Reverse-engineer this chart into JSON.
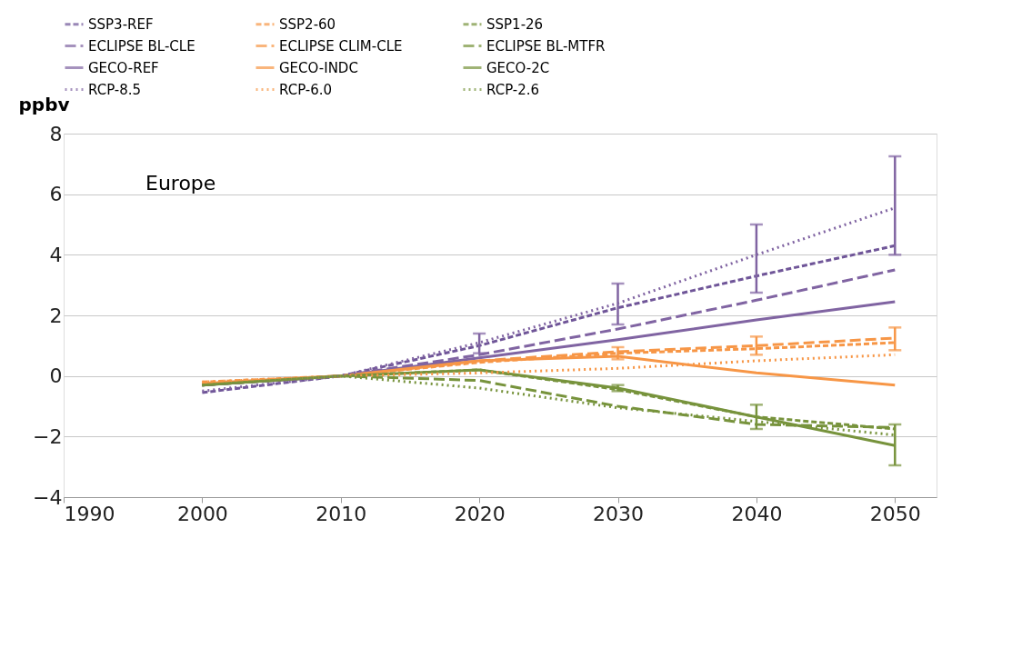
{
  "chart_data": {
    "type": "line",
    "ylabel": "ppbv",
    "annotations": [
      "Europe"
    ],
    "x": [
      2000,
      2010,
      2020,
      2030,
      2040,
      2050
    ],
    "xlim": [
      1990,
      2053
    ],
    "xticks": [
      1990,
      2000,
      2010,
      2020,
      2030,
      2040,
      2050
    ],
    "ylim": [
      -4,
      8
    ],
    "yticks": [
      -4,
      -2,
      0,
      2,
      4,
      6,
      8
    ],
    "grid": "y",
    "legend": "top",
    "series": [
      {
        "name": "SSP3-REF",
        "color": "#6f5598",
        "line_style": "dashed",
        "values": [
          -0.55,
          0,
          1.0,
          2.25,
          3.3,
          4.3
        ]
      },
      {
        "name": "SSP2-60",
        "color": "#f79646",
        "line_style": "dashed",
        "values": [
          -0.2,
          0,
          0.45,
          0.75,
          0.9,
          1.1
        ]
      },
      {
        "name": "SSP1-26",
        "color": "#77933c",
        "line_style": "dashed",
        "values": [
          -0.3,
          0,
          0.2,
          -0.45,
          -1.35,
          -1.75
        ]
      },
      {
        "name": "ECLIPSE BL-CLE",
        "color": "#8064a2",
        "line_style": "longdashed",
        "values": [
          -0.3,
          0,
          0.7,
          1.55,
          2.5,
          3.5
        ]
      },
      {
        "name": "ECLIPSE CLIM-CLE",
        "color": "#f79646",
        "line_style": "longdashed",
        "values": [
          -0.25,
          0,
          0.5,
          0.8,
          1.0,
          1.25
        ]
      },
      {
        "name": "ECLIPSE BL-MTFR",
        "color": "#77933c",
        "line_style": "longdashed",
        "values": [
          -0.3,
          0,
          -0.15,
          -1.0,
          -1.6,
          -1.7
        ]
      },
      {
        "name": "GECO-REF",
        "color": "#8064a2",
        "line_style": "solid",
        "values": [
          -0.3,
          0,
          0.6,
          1.2,
          1.85,
          2.45
        ]
      },
      {
        "name": "GECO-INDC",
        "color": "#f79646",
        "line_style": "solid",
        "values": [
          -0.25,
          0,
          0.5,
          0.65,
          0.1,
          -0.3
        ]
      },
      {
        "name": "GECO-2C",
        "color": "#77933c",
        "line_style": "solid",
        "values": [
          -0.3,
          0,
          0.2,
          -0.4,
          -1.35,
          -2.3
        ]
      },
      {
        "name": "RCP-8.5",
        "color": "#8064a2",
        "line_style": "dotted",
        "values": [
          -0.5,
          0,
          1.1,
          2.4,
          4.0,
          5.55
        ],
        "errors": [
          null,
          null,
          [
            0.75,
            1.4
          ],
          [
            1.7,
            3.05
          ],
          [
            2.75,
            5.0
          ],
          [
            4.0,
            7.25
          ]
        ]
      },
      {
        "name": "RCP-6.0",
        "color": "#f79646",
        "line_style": "dotted",
        "values": [
          -0.2,
          0,
          0.1,
          0.25,
          0.5,
          0.7
        ],
        "errors": [
          null,
          null,
          null,
          [
            0.55,
            0.95
          ],
          [
            0.7,
            1.3
          ],
          [
            0.85,
            1.6
          ]
        ]
      },
      {
        "name": "RCP-2.6",
        "color": "#77933c",
        "line_style": "dotted",
        "values": [
          -0.3,
          0,
          -0.4,
          -1.05,
          -1.5,
          -1.95
        ],
        "errors": [
          null,
          null,
          null,
          [
            -0.5,
            -0.3
          ],
          [
            -1.75,
            -0.95
          ],
          [
            -2.95,
            -1.6
          ]
        ]
      }
    ]
  }
}
